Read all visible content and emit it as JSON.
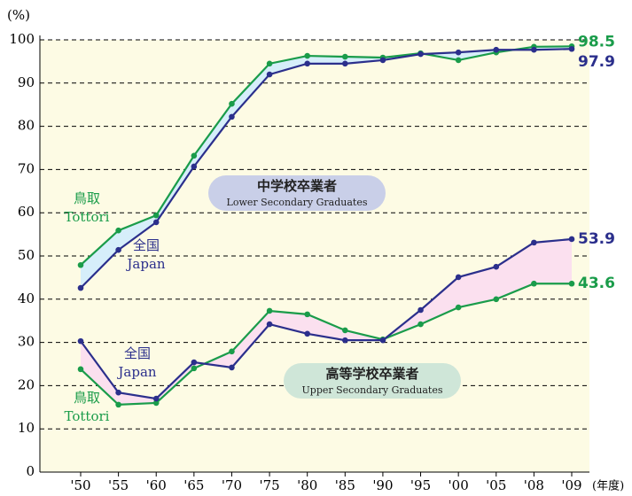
{
  "chart_data": {
    "type": "line",
    "y_label": "(%)",
    "x_unit": "(年度)",
    "categories": [
      "'50",
      "'55",
      "'60",
      "'65",
      "'70",
      "'75",
      "'80",
      "'85",
      "'90",
      "'95",
      "'00",
      "'05",
      "'08",
      "'09"
    ],
    "ylim": [
      0,
      100
    ],
    "yticks": [
      0,
      10,
      20,
      30,
      40,
      50,
      60,
      70,
      80,
      90,
      100
    ],
    "grid": true,
    "series": [
      {
        "name": "鳥取",
        "name_en": "Tottori",
        "color": "#1a9c4a",
        "values": [
          47.9,
          55.9,
          59.4,
          73.2,
          85.2,
          94.5,
          96.3,
          96.1,
          95.9,
          96.9,
          95.3,
          97.1,
          98.4,
          98.5
        ]
      },
      {
        "name": "全国",
        "name_en": "Japan",
        "color": "#2b2f8c",
        "values": [
          42.6,
          51.4,
          57.8,
          70.7,
          82.2,
          92.0,
          94.5,
          94.5,
          95.3,
          96.7,
          97.1,
          97.7,
          97.7,
          97.9
        ]
      },
      {
        "name": "鳥取",
        "name_en": "Tottori",
        "color": "#1a9c4a",
        "values": [
          23.8,
          15.6,
          16.0,
          24.0,
          27.9,
          37.3,
          36.5,
          32.8,
          30.7,
          34.2,
          38.1,
          40.0,
          43.6,
          43.6
        ]
      },
      {
        "name": "全国",
        "name_en": "Japan",
        "color": "#2b2f8c",
        "values": [
          30.3,
          18.4,
          17.0,
          25.4,
          24.2,
          34.2,
          32.0,
          30.5,
          30.5,
          37.5,
          45.1,
          47.5,
          53.1,
          53.9
        ]
      }
    ],
    "groups": [
      {
        "title": "中学校卒業者",
        "subtitle": "Lower Secondary Graduates",
        "color": "#c9cfe8",
        "fill": "#d6eefa"
      },
      {
        "title": "高等学校卒業者",
        "subtitle": "Upper Secondary Graduates",
        "color": "#cfe6d8",
        "fill": "#fbe0ef"
      }
    ]
  }
}
